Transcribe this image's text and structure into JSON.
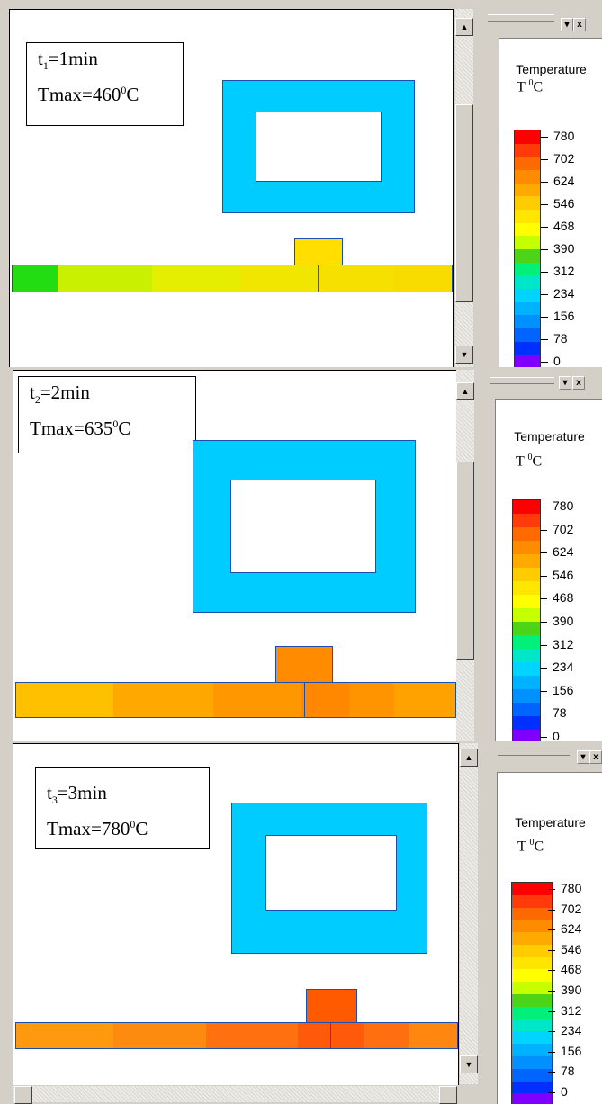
{
  "legend": {
    "title": "Temperature",
    "unit_prefix": "T ",
    "unit_sup": "0",
    "unit_suffix": "C",
    "labels": [
      "780",
      "702",
      "624",
      "546",
      "468",
      "390",
      "312",
      "234",
      "156",
      "78",
      "0"
    ],
    "colors": [
      "#ff0000",
      "#ff3b0c",
      "#ff6a00",
      "#ff8c00",
      "#ffaa00",
      "#ffcc00",
      "#ffe600",
      "#ffff00",
      "#c6ff00",
      "#4cd419",
      "#00f07a",
      "#00e6c8",
      "#00d4ff",
      "#00b2ff",
      "#0090ff",
      "#0064ff",
      "#0030ff",
      "#8000ff"
    ]
  },
  "window_buttons": {
    "minimize": "▾",
    "close": "x"
  },
  "scroll": {
    "up": "▲",
    "down": "▼"
  },
  "frames": [
    {
      "time_var": "t",
      "time_sub": "1",
      "time_value": "=1min",
      "tmax_label": "Tmax=",
      "tmax_value": "460",
      "tmax_sup": "0",
      "tmax_unit": "C",
      "strip_colors": [
        "#22dd11",
        "#c8f000",
        "#e6ee00",
        "#f0e600",
        "#f5e000",
        "#f8dc00"
      ],
      "block_color": "#ffde00"
    },
    {
      "time_var": "t",
      "time_sub": "2",
      "time_value": "=2min",
      "tmax_label": "Tmax=",
      "tmax_value": "635",
      "tmax_sup": "0",
      "tmax_unit": "C",
      "strip_colors": [
        "#ffc000",
        "#ffa800",
        "#ff9800",
        "#ff8800",
        "#ff9400",
        "#ffa200"
      ],
      "block_color": "#ff8c00"
    },
    {
      "time_var": "t",
      "time_sub": "3",
      "time_value": "=3min",
      "tmax_label": "Tmax=",
      "tmax_value": "780",
      "tmax_sup": "0",
      "tmax_unit": "C",
      "strip_colors": [
        "#ff9a10",
        "#ff8a10",
        "#ff7010",
        "#ff5a0c",
        "#ff6e10",
        "#ff8610"
      ],
      "block_color": "#ff5a00"
    }
  ]
}
